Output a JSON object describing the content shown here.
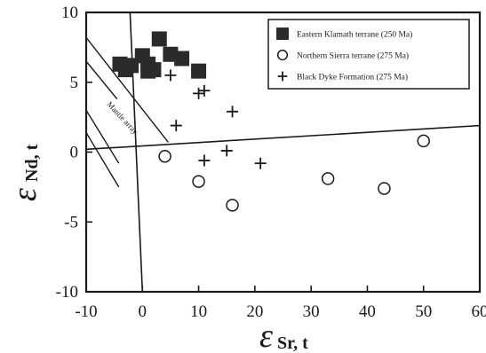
{
  "chart_data": {
    "type": "scatter",
    "xlim": [
      -10,
      60
    ],
    "ylim": [
      -10,
      10
    ],
    "x_ticks": [
      "-10",
      "0",
      "10",
      "20",
      "30",
      "40",
      "50",
      "60"
    ],
    "y_ticks": [
      "10",
      "5",
      "0",
      "-5",
      "-10"
    ],
    "xlabel": {
      "symbol": "ε",
      "subscript": "Sr, t"
    },
    "ylabel": {
      "symbol": "ε",
      "subscript": "Nd, t"
    },
    "annotation": "Mantle array",
    "legend_position": "top-right",
    "grid": false,
    "series": [
      {
        "name": "Eastern Klamath terrane (250 Ma)",
        "marker": "filled-square",
        "points": [
          [
            -4,
            6.3
          ],
          [
            -2,
            6.2
          ],
          [
            0,
            6.9
          ],
          [
            1,
            6.3
          ],
          [
            1,
            5.8
          ],
          [
            2,
            5.9
          ],
          [
            -3,
            5.9
          ],
          [
            3,
            8.1
          ],
          [
            5,
            7.0
          ],
          [
            7,
            6.7
          ],
          [
            10,
            5.8
          ]
        ]
      },
      {
        "name": "Northern Sierra terrane (275 Ma)",
        "marker": "open-circle",
        "points": [
          [
            4,
            -0.3
          ],
          [
            10,
            -2.1
          ],
          [
            16,
            -3.8
          ],
          [
            33,
            -1.9
          ],
          [
            43,
            -2.6
          ],
          [
            50,
            0.8
          ]
        ]
      },
      {
        "name": "Black Dyke Formation (275 Ma)",
        "marker": "plus",
        "points": [
          [
            5,
            5.5
          ],
          [
            6,
            1.9
          ],
          [
            10,
            4.2
          ],
          [
            11,
            4.4
          ],
          [
            16,
            2.9
          ],
          [
            11,
            -0.6
          ],
          [
            15,
            0.1
          ],
          [
            21,
            -0.8
          ]
        ]
      }
    ]
  }
}
